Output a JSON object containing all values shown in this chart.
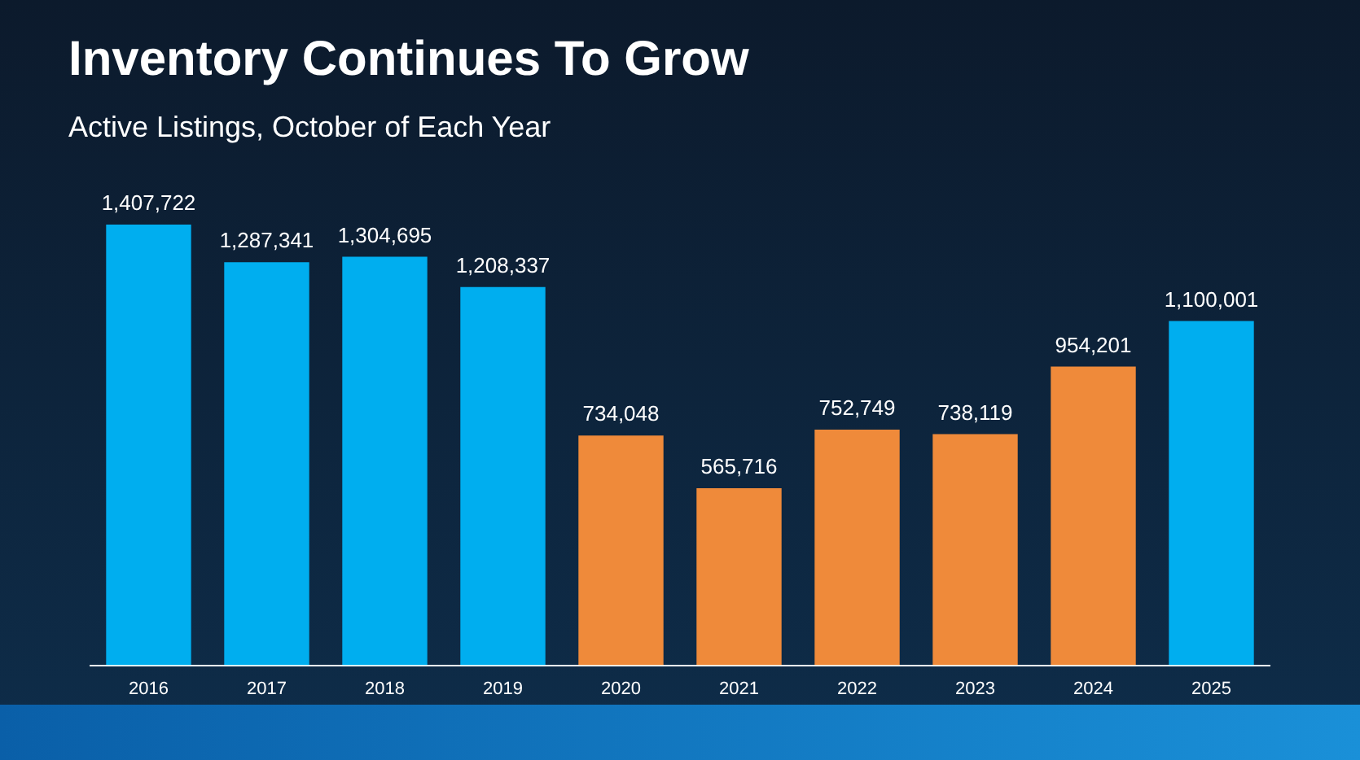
{
  "chart_data": {
    "type": "bar",
    "title": "Inventory Continues To Grow",
    "subtitle": "Active Listings, October of Each Year",
    "categories": [
      "2016",
      "2017",
      "2018",
      "2019",
      "2020",
      "2021",
      "2022",
      "2023",
      "2024",
      "2025"
    ],
    "values": [
      1407722,
      1287341,
      1304695,
      1208337,
      734048,
      565716,
      752749,
      738119,
      954201,
      1100001
    ],
    "colors": [
      "#00aeef",
      "#00aeef",
      "#00aeef",
      "#00aeef",
      "#ef8a3a",
      "#ef8a3a",
      "#ef8a3a",
      "#ef8a3a",
      "#ef8a3a",
      "#00aeef"
    ],
    "value_labels": [
      "1,407,722",
      "1,287,341",
      "1,304,695",
      "1,208,337",
      "734,048",
      "565,716",
      "752,749",
      "738,119",
      "954,201",
      "1,100,001"
    ],
    "tick_labels": "x",
    "grid": false,
    "legend": false
  }
}
